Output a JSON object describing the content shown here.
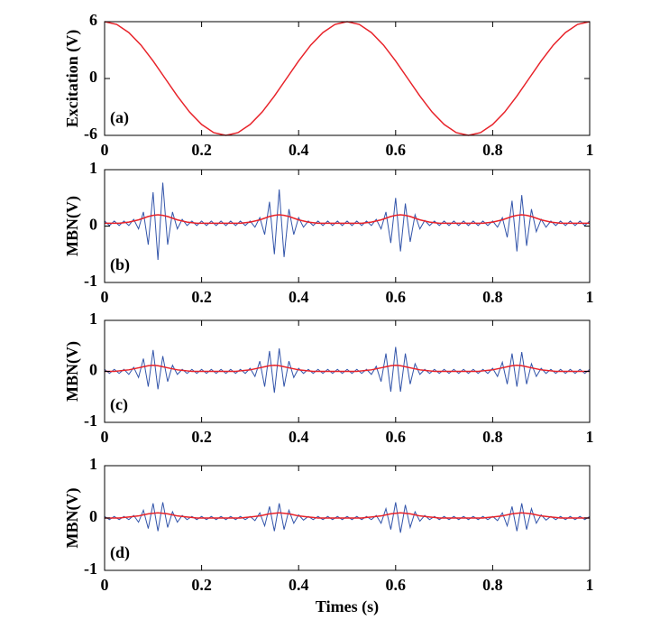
{
  "chart_data": [
    {
      "type": "line",
      "ylabel": "Excitation (V)",
      "annotation": "(a)",
      "x": [
        0,
        0.025,
        0.05,
        0.075,
        0.1,
        0.125,
        0.15,
        0.175,
        0.2,
        0.225,
        0.25,
        0.275,
        0.3,
        0.325,
        0.35,
        0.375,
        0.4,
        0.425,
        0.45,
        0.475,
        0.5,
        0.525,
        0.55,
        0.575,
        0.6,
        0.625,
        0.65,
        0.675,
        0.7,
        0.725,
        0.75,
        0.775,
        0.8,
        0.825,
        0.85,
        0.875,
        0.9,
        0.925,
        0.95,
        0.975,
        1
      ],
      "series": [
        {
          "color": "#e8232a",
          "values": [
            6,
            5.71,
            4.85,
            3.53,
            1.85,
            0,
            -1.85,
            -3.53,
            -4.85,
            -5.71,
            -6,
            -5.71,
            -4.85,
            -3.53,
            -1.85,
            0,
            1.85,
            3.53,
            4.85,
            5.71,
            6,
            5.71,
            4.85,
            3.53,
            1.85,
            0,
            -1.85,
            -3.53,
            -4.85,
            -5.71,
            -6,
            -5.71,
            -4.85,
            -3.53,
            -1.85,
            0,
            1.85,
            3.53,
            4.85,
            5.71,
            6
          ]
        }
      ],
      "xlim": [
        0,
        1
      ],
      "ylim": [
        -6,
        6
      ],
      "xticks": [
        0,
        0.2,
        0.4,
        0.6,
        0.8,
        1
      ],
      "yticks": [
        -6,
        0,
        6
      ]
    },
    {
      "type": "line",
      "ylabel": "MBN(V)",
      "annotation": "(b)",
      "x": [
        0,
        0.01,
        0.02,
        0.03,
        0.04,
        0.05,
        0.06,
        0.07,
        0.08,
        0.09,
        0.1,
        0.11,
        0.12,
        0.13,
        0.14,
        0.15,
        0.16,
        0.17,
        0.18,
        0.19,
        0.2,
        0.21,
        0.22,
        0.23,
        0.24,
        0.25,
        0.26,
        0.27,
        0.28,
        0.29,
        0.3,
        0.31,
        0.32,
        0.33,
        0.34,
        0.35,
        0.36,
        0.37,
        0.38,
        0.39,
        0.4,
        0.41,
        0.42,
        0.43,
        0.44,
        0.45,
        0.46,
        0.47,
        0.48,
        0.49,
        0.5,
        0.51,
        0.52,
        0.53,
        0.54,
        0.55,
        0.56,
        0.57,
        0.58,
        0.59,
        0.6,
        0.61,
        0.62,
        0.63,
        0.64,
        0.65,
        0.66,
        0.67,
        0.68,
        0.69,
        0.7,
        0.71,
        0.72,
        0.73,
        0.74,
        0.75,
        0.76,
        0.77,
        0.78,
        0.79,
        0.8,
        0.81,
        0.82,
        0.83,
        0.84,
        0.85,
        0.86,
        0.87,
        0.88,
        0.89,
        0.9,
        0.91,
        0.92,
        0.93,
        0.94,
        0.95,
        0.96,
        0.97,
        0.98,
        0.99,
        1
      ],
      "series": [
        {
          "color": "#3355aa",
          "values": [
            0.09,
            0.01,
            0.09,
            0.01,
            0.09,
            0.01,
            0.12,
            -0.05,
            0.25,
            -0.33,
            0.6,
            -0.6,
            0.77,
            -0.33,
            0.25,
            -0.05,
            0.12,
            0.01,
            0.09,
            0.01,
            0.09,
            0.01,
            0.09,
            0.01,
            0.09,
            0.01,
            0.09,
            0.01,
            0.09,
            0.01,
            0.09,
            -0.02,
            0.15,
            -0.15,
            0.43,
            -0.5,
            0.65,
            -0.55,
            0.3,
            -0.15,
            0.15,
            -0.02,
            0.09,
            0.01,
            0.09,
            0.01,
            0.09,
            0.01,
            0.09,
            0.01,
            0.09,
            0.01,
            0.09,
            0.01,
            0.09,
            0.01,
            0.12,
            -0.05,
            0.25,
            -0.3,
            0.5,
            -0.45,
            0.4,
            -0.28,
            0.2,
            -0.05,
            0.1,
            0.01,
            0.09,
            0.01,
            0.09,
            0.01,
            0.09,
            0.01,
            0.09,
            0.01,
            0.09,
            0.01,
            0.09,
            0.01,
            0.09,
            -0.02,
            0.15,
            -0.2,
            0.45,
            -0.45,
            0.55,
            -0.35,
            0.3,
            -0.1,
            0.12,
            -0.02,
            0.09,
            0.01,
            0.09,
            0.01,
            0.09,
            0.01,
            0.09,
            0.01,
            0.09
          ]
        },
        {
          "color": "#e8232a",
          "values": [
            0.05,
            0.05,
            0.05,
            0.05,
            0.06,
            0.07,
            0.09,
            0.11,
            0.14,
            0.17,
            0.19,
            0.2,
            0.19,
            0.17,
            0.14,
            0.11,
            0.09,
            0.07,
            0.06,
            0.05,
            0.05,
            0.05,
            0.05,
            0.05,
            0.05,
            0.05,
            0.05,
            0.05,
            0.05,
            0.06,
            0.07,
            0.09,
            0.11,
            0.14,
            0.17,
            0.19,
            0.2,
            0.19,
            0.17,
            0.14,
            0.11,
            0.09,
            0.07,
            0.06,
            0.05,
            0.05,
            0.05,
            0.05,
            0.05,
            0.05,
            0.05,
            0.05,
            0.05,
            0.05,
            0.06,
            0.07,
            0.09,
            0.11,
            0.14,
            0.17,
            0.19,
            0.2,
            0.19,
            0.17,
            0.14,
            0.11,
            0.09,
            0.07,
            0.06,
            0.05,
            0.05,
            0.05,
            0.05,
            0.05,
            0.05,
            0.05,
            0.05,
            0.05,
            0.05,
            0.06,
            0.07,
            0.09,
            0.11,
            0.14,
            0.17,
            0.19,
            0.2,
            0.19,
            0.17,
            0.14,
            0.11,
            0.09,
            0.07,
            0.06,
            0.05,
            0.05,
            0.05,
            0.05,
            0.05,
            0.05,
            0.05
          ]
        }
      ],
      "xlim": [
        0,
        1
      ],
      "ylim": [
        -1,
        1
      ],
      "xticks": [
        0,
        0.2,
        0.4,
        0.6,
        0.8,
        1
      ],
      "yticks": [
        -1,
        0,
        1
      ]
    },
    {
      "type": "line",
      "ylabel": "MBN(V)",
      "annotation": "(c)",
      "x": [
        0,
        0.01,
        0.02,
        0.03,
        0.04,
        0.05,
        0.06,
        0.07,
        0.08,
        0.09,
        0.1,
        0.11,
        0.12,
        0.13,
        0.14,
        0.15,
        0.16,
        0.17,
        0.18,
        0.19,
        0.2,
        0.21,
        0.22,
        0.23,
        0.24,
        0.25,
        0.26,
        0.27,
        0.28,
        0.29,
        0.3,
        0.31,
        0.32,
        0.33,
        0.34,
        0.35,
        0.36,
        0.37,
        0.38,
        0.39,
        0.4,
        0.41,
        0.42,
        0.43,
        0.44,
        0.45,
        0.46,
        0.47,
        0.48,
        0.49,
        0.5,
        0.51,
        0.52,
        0.53,
        0.54,
        0.55,
        0.56,
        0.57,
        0.58,
        0.59,
        0.6,
        0.61,
        0.62,
        0.63,
        0.64,
        0.65,
        0.66,
        0.67,
        0.68,
        0.69,
        0.7,
        0.71,
        0.72,
        0.73,
        0.74,
        0.75,
        0.76,
        0.77,
        0.78,
        0.79,
        0.8,
        0.81,
        0.82,
        0.83,
        0.84,
        0.85,
        0.86,
        0.87,
        0.88,
        0.89,
        0.9,
        0.91,
        0.92,
        0.93,
        0.94,
        0.95,
        0.96,
        0.97,
        0.98,
        0.99,
        1
      ],
      "series": [
        {
          "color": "#3355aa",
          "values": [
            0.04,
            -0.04,
            0.04,
            -0.04,
            0.04,
            -0.06,
            0.08,
            -0.12,
            0.25,
            -0.3,
            0.42,
            -0.35,
            0.3,
            -0.2,
            0.12,
            -0.06,
            0.04,
            -0.04,
            0.04,
            -0.04,
            0.04,
            -0.04,
            0.04,
            -0.04,
            0.04,
            -0.04,
            0.04,
            -0.04,
            0.04,
            -0.04,
            0.06,
            -0.1,
            0.2,
            -0.3,
            0.4,
            -0.42,
            0.45,
            -0.3,
            0.2,
            -0.12,
            0.06,
            -0.04,
            0.04,
            -0.04,
            0.04,
            -0.04,
            0.04,
            -0.04,
            0.04,
            -0.04,
            0.04,
            -0.04,
            0.04,
            -0.04,
            0.04,
            -0.06,
            0.1,
            -0.2,
            0.35,
            -0.4,
            0.48,
            -0.4,
            0.35,
            -0.25,
            0.15,
            -0.06,
            0.04,
            -0.04,
            0.04,
            -0.04,
            0.04,
            -0.04,
            0.04,
            -0.04,
            0.04,
            -0.04,
            0.04,
            -0.04,
            0.04,
            -0.04,
            0.06,
            -0.1,
            0.18,
            -0.25,
            0.35,
            -0.3,
            0.38,
            -0.25,
            0.15,
            -0.1,
            0.06,
            -0.04,
            0.04,
            -0.04,
            0.04,
            -0.04,
            0.04,
            -0.04,
            0.04,
            -0.04,
            0.04
          ]
        },
        {
          "color": "#e8232a",
          "values": [
            0,
            0,
            0,
            0.01,
            0.02,
            0.03,
            0.05,
            0.07,
            0.09,
            0.11,
            0.12,
            0.11,
            0.09,
            0.07,
            0.05,
            0.03,
            0.02,
            0.01,
            0,
            0,
            0,
            0,
            0,
            0,
            0,
            0,
            0,
            0,
            0.01,
            0.02,
            0.03,
            0.05,
            0.07,
            0.09,
            0.11,
            0.12,
            0.11,
            0.09,
            0.07,
            0.05,
            0.03,
            0.02,
            0.01,
            0,
            0,
            0,
            0,
            0,
            0,
            0,
            0,
            0,
            0,
            0.01,
            0.02,
            0.03,
            0.05,
            0.07,
            0.09,
            0.11,
            0.12,
            0.11,
            0.09,
            0.07,
            0.05,
            0.03,
            0.02,
            0.01,
            0,
            0,
            0,
            0,
            0,
            0,
            0,
            0,
            0,
            0,
            0.01,
            0.02,
            0.03,
            0.05,
            0.07,
            0.09,
            0.11,
            0.12,
            0.11,
            0.09,
            0.07,
            0.05,
            0.03,
            0.02,
            0.01,
            0,
            0,
            0,
            0,
            0,
            0,
            0,
            0
          ]
        }
      ],
      "xlim": [
        0,
        1
      ],
      "ylim": [
        -1,
        1
      ],
      "xticks": [
        0,
        0.2,
        0.4,
        0.6,
        0.8,
        1
      ],
      "yticks": [
        -1,
        0,
        1
      ]
    },
    {
      "type": "line",
      "ylabel": "MBN(V)",
      "annotation": "(d)",
      "xlabel": "Times (s)",
      "x": [
        0,
        0.01,
        0.02,
        0.03,
        0.04,
        0.05,
        0.06,
        0.07,
        0.08,
        0.09,
        0.1,
        0.11,
        0.12,
        0.13,
        0.14,
        0.15,
        0.16,
        0.17,
        0.18,
        0.19,
        0.2,
        0.21,
        0.22,
        0.23,
        0.24,
        0.25,
        0.26,
        0.27,
        0.28,
        0.29,
        0.3,
        0.31,
        0.32,
        0.33,
        0.34,
        0.35,
        0.36,
        0.37,
        0.38,
        0.39,
        0.4,
        0.41,
        0.42,
        0.43,
        0.44,
        0.45,
        0.46,
        0.47,
        0.48,
        0.49,
        0.5,
        0.51,
        0.52,
        0.53,
        0.54,
        0.55,
        0.56,
        0.57,
        0.58,
        0.59,
        0.6,
        0.61,
        0.62,
        0.63,
        0.64,
        0.65,
        0.66,
        0.67,
        0.68,
        0.69,
        0.7,
        0.71,
        0.72,
        0.73,
        0.74,
        0.75,
        0.76,
        0.77,
        0.78,
        0.79,
        0.8,
        0.81,
        0.82,
        0.83,
        0.84,
        0.85,
        0.86,
        0.87,
        0.88,
        0.89,
        0.9,
        0.91,
        0.92,
        0.93,
        0.94,
        0.95,
        0.96,
        0.97,
        0.98,
        0.99,
        1
      ],
      "series": [
        {
          "color": "#3355aa",
          "values": [
            0.03,
            -0.03,
            0.03,
            -0.03,
            0.03,
            -0.03,
            0.05,
            -0.08,
            0.15,
            -0.2,
            0.28,
            -0.25,
            0.3,
            -0.18,
            0.12,
            -0.08,
            0.05,
            -0.03,
            0.03,
            -0.03,
            0.03,
            -0.03,
            0.03,
            -0.03,
            0.03,
            -0.03,
            0.03,
            -0.03,
            0.03,
            -0.03,
            0.03,
            -0.05,
            0.1,
            -0.15,
            0.22,
            -0.25,
            0.28,
            -0.22,
            0.15,
            -0.1,
            0.06,
            -0.04,
            0.03,
            -0.03,
            0.03,
            -0.03,
            0.03,
            -0.03,
            0.03,
            -0.03,
            0.03,
            -0.03,
            0.03,
            -0.03,
            0.03,
            -0.03,
            0.05,
            -0.1,
            0.18,
            -0.22,
            0.3,
            -0.28,
            0.25,
            -0.18,
            0.12,
            -0.06,
            0.05,
            -0.03,
            0.03,
            -0.03,
            0.03,
            -0.03,
            0.03,
            -0.03,
            0.03,
            -0.03,
            0.03,
            -0.03,
            0.03,
            -0.03,
            0.03,
            -0.05,
            0.1,
            -0.15,
            0.22,
            -0.25,
            0.28,
            -0.22,
            0.18,
            -0.1,
            0.06,
            -0.04,
            0.03,
            -0.03,
            0.03,
            -0.03,
            0.03,
            -0.03,
            0.03,
            -0.03,
            0.03
          ]
        },
        {
          "color": "#e8232a",
          "values": [
            0,
            0,
            0,
            0,
            0.01,
            0.02,
            0.03,
            0.04,
            0.06,
            0.08,
            0.09,
            0.1,
            0.09,
            0.08,
            0.06,
            0.04,
            0.03,
            0.02,
            0.01,
            0,
            0,
            0,
            0,
            0,
            0,
            0,
            0,
            0,
            0,
            0.01,
            0.02,
            0.03,
            0.04,
            0.06,
            0.08,
            0.09,
            0.1,
            0.09,
            0.08,
            0.06,
            0.04,
            0.03,
            0.02,
            0.01,
            0,
            0,
            0,
            0,
            0,
            0,
            0,
            0,
            0,
            0,
            0.01,
            0.02,
            0.03,
            0.04,
            0.06,
            0.08,
            0.09,
            0.1,
            0.09,
            0.08,
            0.06,
            0.04,
            0.03,
            0.02,
            0.01,
            0,
            0,
            0,
            0,
            0,
            0,
            0,
            0,
            0,
            0,
            0.01,
            0.02,
            0.03,
            0.04,
            0.06,
            0.08,
            0.09,
            0.1,
            0.09,
            0.08,
            0.06,
            0.04,
            0.03,
            0.02,
            0.01,
            0,
            0,
            0,
            0,
            0,
            0,
            0
          ]
        }
      ],
      "xlim": [
        0,
        1
      ],
      "ylim": [
        -1,
        1
      ],
      "xticks": [
        0,
        0.2,
        0.4,
        0.6,
        0.8,
        1
      ],
      "yticks": [
        -1,
        0,
        1
      ]
    }
  ]
}
